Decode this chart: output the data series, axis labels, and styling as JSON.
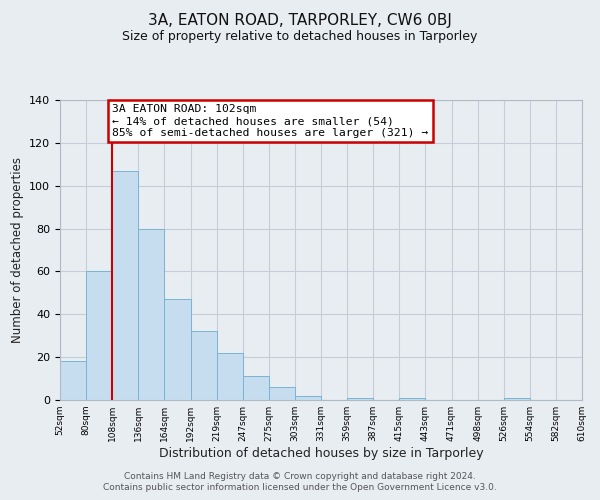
{
  "title": "3A, EATON ROAD, TARPORLEY, CW6 0BJ",
  "subtitle": "Size of property relative to detached houses in Tarporley",
  "xlabel": "Distribution of detached houses by size in Tarporley",
  "ylabel": "Number of detached properties",
  "bar_values": [
    18,
    60,
    107,
    80,
    47,
    32,
    22,
    11,
    6,
    2,
    0,
    1,
    0,
    1,
    0,
    0,
    0,
    1,
    0,
    0
  ],
  "bin_labels": [
    "52sqm",
    "80sqm",
    "108sqm",
    "136sqm",
    "164sqm",
    "192sqm",
    "219sqm",
    "247sqm",
    "275sqm",
    "303sqm",
    "331sqm",
    "359sqm",
    "387sqm",
    "415sqm",
    "443sqm",
    "471sqm",
    "498sqm",
    "526sqm",
    "554sqm",
    "582sqm",
    "610sqm"
  ],
  "bar_color": "#c5ddef",
  "bar_edge_color": "#7ab3d3",
  "vline_color": "#cc0000",
  "annotation_box_text": "3A EATON ROAD: 102sqm\n← 14% of detached houses are smaller (54)\n85% of semi-detached houses are larger (321) →",
  "annotation_box_color": "#cc0000",
  "ylim": [
    0,
    140
  ],
  "yticks": [
    0,
    20,
    40,
    60,
    80,
    100,
    120,
    140
  ],
  "footer1": "Contains HM Land Registry data © Crown copyright and database right 2024.",
  "footer2": "Contains public sector information licensed under the Open Government Licence v3.0.",
  "background_color": "#e8edf2",
  "plot_bg_color": "#e8edf2",
  "grid_color": "#c5ced8"
}
